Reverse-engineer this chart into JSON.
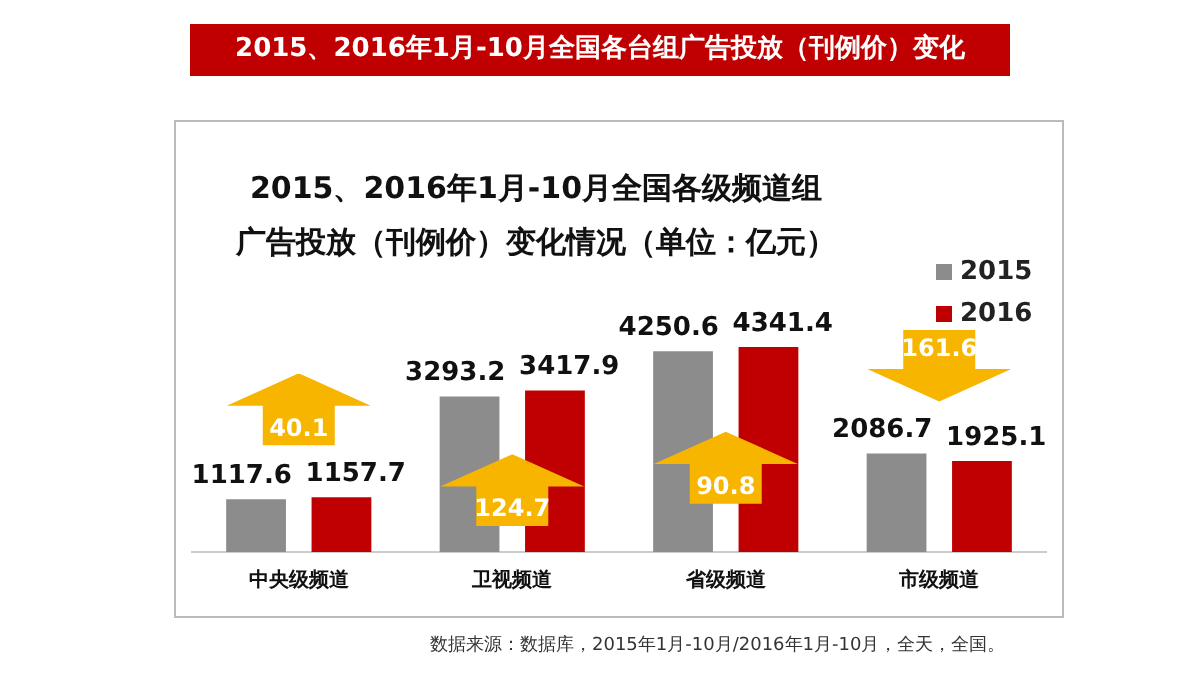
{
  "chart_data": {
    "type": "bar",
    "title": "2015、2016年1月-10月全国各台组广告投放（刊例价）变化",
    "subtitle": "2015、2016年1月-10月全国各级频道组广告投放（刊例价）变化情况（单位：亿元）",
    "categories": [
      "中央级频道",
      "卫视频道",
      "省级频道",
      "市级频道"
    ],
    "series": [
      {
        "name": "2015",
        "color": "#8c8c8c",
        "values": [
          1117.6,
          3293.2,
          4250.6,
          2086.7
        ]
      },
      {
        "name": "2016",
        "color": "#c00000",
        "values": [
          1157.7,
          3417.9,
          4341.4,
          1925.1
        ]
      }
    ],
    "data_labels": true,
    "legend": "top right",
    "grid": false,
    "annotations": [
      "40.1",
      "124.7",
      "90.8",
      "161.6",
      "数据来源：数据库，2015年1月-10月/2016年1月-10月，全天，全国。"
    ]
  }
}
